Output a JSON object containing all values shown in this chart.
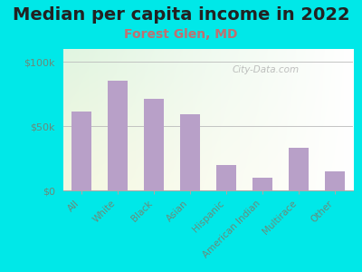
{
  "title": "Median per capita income in 2022",
  "subtitle": "Forest Glen, MD",
  "categories": [
    "All",
    "White",
    "Black",
    "Asian",
    "Hispanic",
    "American Indian",
    "Multirace",
    "Other"
  ],
  "values": [
    61000,
    85000,
    71000,
    59000,
    20000,
    10000,
    33000,
    15000
  ],
  "bar_color": "#b8a0c8",
  "title_fontsize": 14,
  "subtitle_fontsize": 10,
  "subtitle_color": "#c07070",
  "title_color": "#222222",
  "background_outer": "#00e8e8",
  "ylim": [
    0,
    110000
  ],
  "ytick_labels": [
    "$0",
    "$50k",
    "$100k"
  ],
  "ytick_values": [
    0,
    50000,
    100000
  ],
  "watermark": "City-Data.com",
  "tick_color": "#6a8a7a",
  "ytick_fontsize": 8,
  "xtick_fontsize": 7.5
}
